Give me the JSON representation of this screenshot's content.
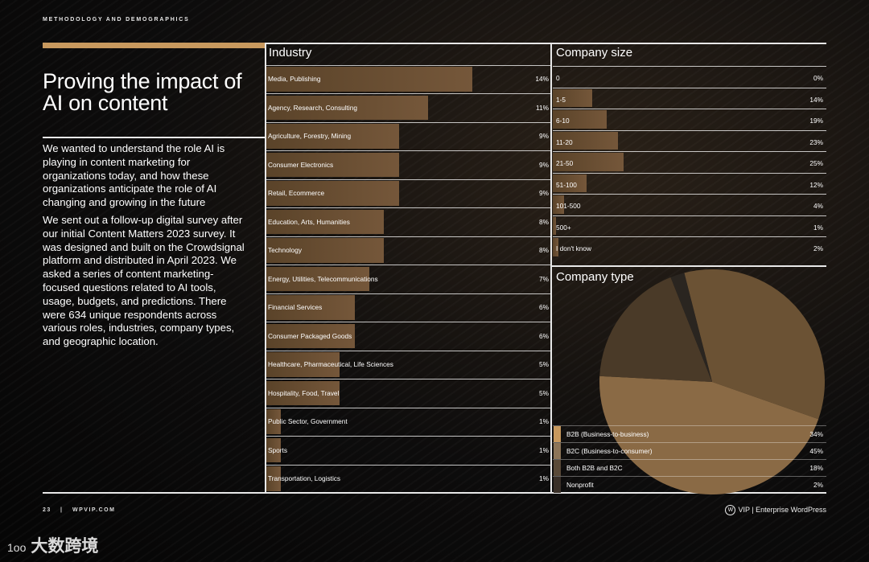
{
  "header": {
    "section_label": "METHODOLOGY AND DEMOGRAPHICS"
  },
  "intro": {
    "title": "Proving the impact of AI on content",
    "para1": "We wanted to understand the role AI is playing in content marketing for organizations today, and how these organizations anticipate the role of AI changing and growing in the future",
    "para2": "We sent out a follow-up digital survey after our initial Content Matters 2023 survey. It was designed and built on the Crowdsignal platform and distributed in April 2023. We asked a series of content marketing-focused questions related to AI tools, usage, budgets, and predictions. There were 634 unique respondents across various roles, industries, company types, and geographic location."
  },
  "footer": {
    "page_number": "23",
    "separator": "|",
    "site": "WPVIP.COM",
    "brand_logo": "W",
    "brand": "VIP | Enterprise WordPress"
  },
  "watermark": {
    "logo": "1oo",
    "text": "大数跨境"
  },
  "colors": {
    "accent": "#c8995e",
    "bar": "#6b5034",
    "pie_b2b": "#6b5234",
    "pie_b2c": "#8a6a45",
    "pie_both": "#4a3a28",
    "pie_nonprofit": "#2a2520"
  },
  "chart_data": [
    {
      "type": "bar",
      "title": "Industry",
      "categories": [
        "Media, Publishing",
        "Agency, Research, Consulting",
        "Agriculture, Forestry, Mining",
        "Consumer Electronics",
        "Retail, Ecommerce",
        "Education, Arts, Humanities",
        "Technology",
        "Energy, Utilities, Telecommunications",
        "Financial Services",
        "Consumer Packaged Goods",
        "Healthcare, Pharmaceutical, Life Sciences",
        "Hospitality, Food, Travel",
        "Public Sector, Government",
        "Sports",
        "Transportation, Logistics"
      ],
      "values": [
        14,
        11,
        9,
        9,
        9,
        8,
        8,
        7,
        6,
        6,
        5,
        5,
        1,
        1,
        1
      ],
      "labels": [
        "14%",
        "11%",
        "9%",
        "9%",
        "9%",
        "8%",
        "8%",
        "7%",
        "6%",
        "6%",
        "5%",
        "5%",
        "1%",
        "1%",
        "1%"
      ],
      "unit": "%"
    },
    {
      "type": "bar",
      "title": "Company size",
      "categories": [
        "0",
        "1-5",
        "6-10",
        "11-20",
        "21-50",
        "51-100",
        "101-500",
        "500+",
        "I don't know"
      ],
      "values": [
        0,
        14,
        19,
        23,
        25,
        12,
        4,
        1,
        2
      ],
      "labels": [
        "0%",
        "14%",
        "19%",
        "23%",
        "25%",
        "12%",
        "4%",
        "1%",
        "2%"
      ],
      "unit": "%"
    },
    {
      "type": "pie",
      "title": "Company type",
      "categories": [
        "B2B (Business-to-business)",
        "B2C (Business-to-consumer)",
        "Both B2B and B2C",
        "Nonprofit"
      ],
      "values": [
        34,
        45,
        18,
        2
      ],
      "labels": [
        "34%",
        "45%",
        "18%",
        "2%"
      ],
      "unit": "%"
    }
  ]
}
